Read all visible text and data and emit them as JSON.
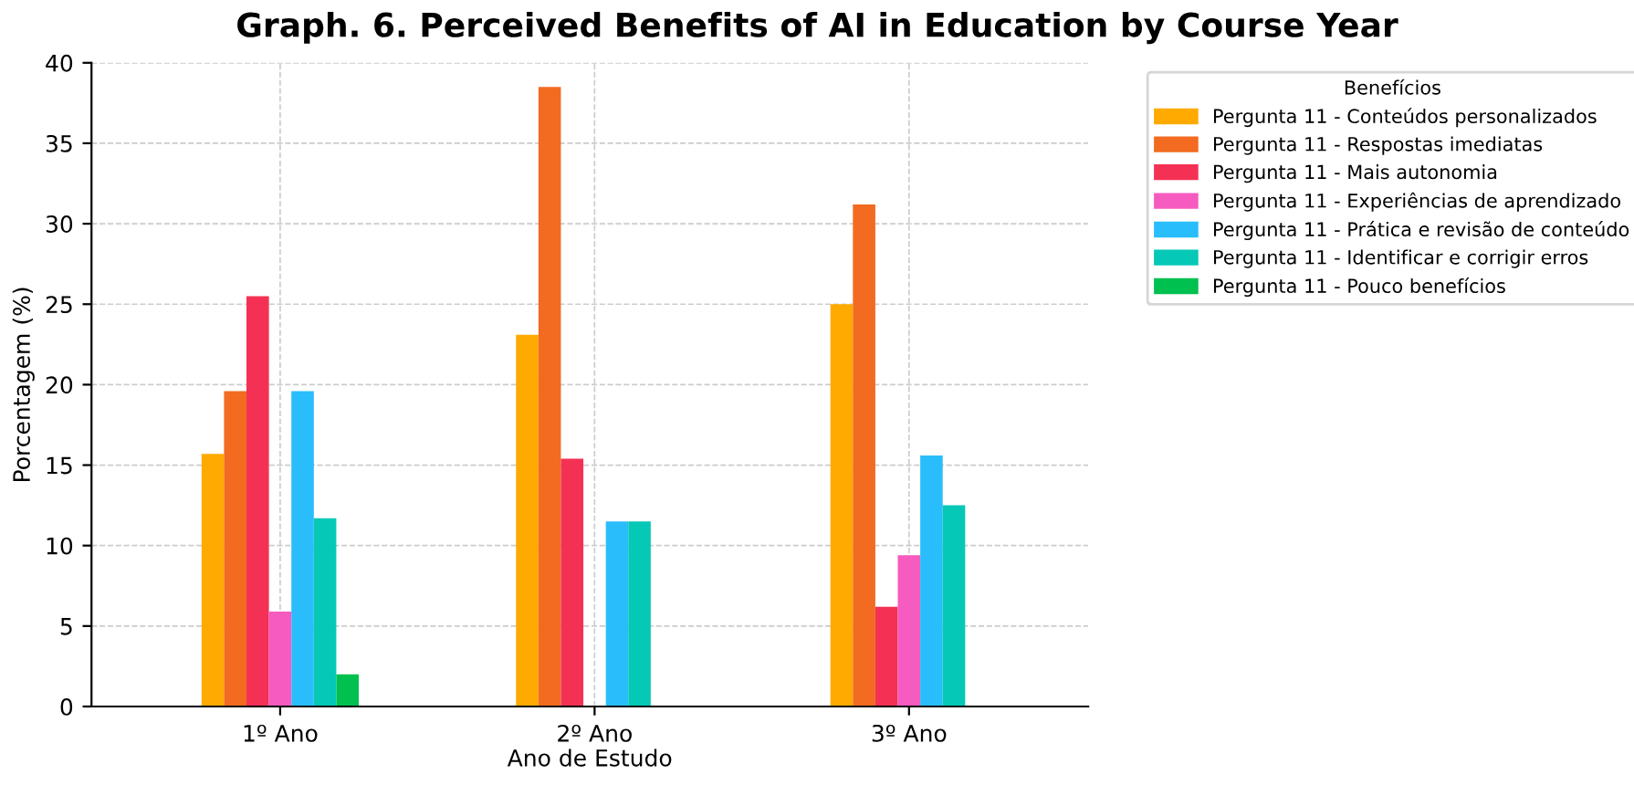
{
  "chart_data": {
    "type": "bar",
    "title": "Graph. 6. Perceived Benefits of AI in Education by Course Year",
    "xlabel": "Ano de Estudo",
    "ylabel": "Porcentagem (%)",
    "legend_title": "Benefícios",
    "categories": [
      "1º Ano",
      "2º Ano",
      "3º Ano"
    ],
    "series": [
      {
        "name": "Pergunta 11 - Conteúdos personalizados",
        "color": "#ffaa00",
        "values": [
          15.7,
          23.1,
          25.0
        ]
      },
      {
        "name": "Pergunta 11 - Respostas imediatas",
        "color": "#f26b21",
        "values": [
          19.6,
          38.5,
          31.2
        ]
      },
      {
        "name": "Pergunta 11 - Mais autonomia",
        "color": "#f43154",
        "values": [
          25.5,
          15.4,
          6.2
        ]
      },
      {
        "name": "Pergunta 11 - Experiências de aprendizado",
        "color": "#f65bbf",
        "values": [
          5.9,
          0,
          9.4
        ]
      },
      {
        "name": "Pergunta 11 - Prática e revisão de conteúdo",
        "color": "#2abdfb",
        "values": [
          19.6,
          11.5,
          15.6
        ]
      },
      {
        "name": "Pergunta 11 - Identificar e corrigir erros",
        "color": "#06c8b7",
        "values": [
          11.7,
          11.5,
          12.5
        ]
      },
      {
        "name": "Pergunta 11 - Pouco benefícios",
        "color": "#00c050",
        "values": [
          2.0,
          0,
          0
        ]
      }
    ],
    "ylim": [
      0,
      40
    ],
    "yticks": [
      0,
      5,
      10,
      15,
      20,
      25,
      30,
      35,
      40
    ],
    "grid": true,
    "legend": "top right"
  }
}
